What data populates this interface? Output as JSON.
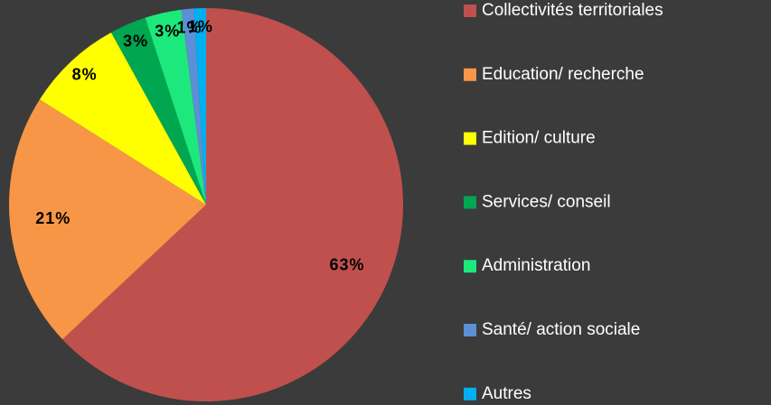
{
  "chart_data": {
    "type": "pie",
    "categories": [
      "Collectivités territoriales",
      "Education/ recherche",
      "Edition/ culture",
      "Services/ conseil",
      "Administration",
      "Santé/ action sociale",
      "Autres"
    ],
    "values": [
      63,
      21,
      8,
      3,
      3,
      1,
      1
    ],
    "value_labels": [
      "63%",
      "21%",
      "8%",
      "3%",
      "3%",
      "1%",
      "1%"
    ],
    "colors": [
      "#c0504d",
      "#f79646",
      "#ffff00",
      "#00a650",
      "#1de87c",
      "#5b8fd6",
      "#00b0f0"
    ],
    "legend": "right"
  }
}
